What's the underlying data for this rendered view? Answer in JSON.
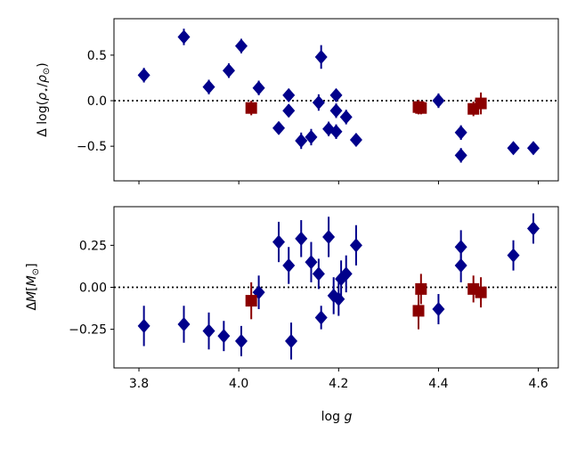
{
  "chart_data": [
    {
      "type": "scatter",
      "panel": "top",
      "xlabel": "",
      "ylabel": "Δ log(ρ⋆/ρ⊙)",
      "xlim": [
        3.75,
        4.64
      ],
      "ylim": [
        -0.88,
        0.9
      ],
      "yticks": [
        0.5,
        0.0,
        -0.5
      ],
      "ytick_labels": [
        "0.5",
        "0.0",
        "−0.5"
      ],
      "reference_line": 0.0,
      "series": [
        {
          "marker": "diamond",
          "color": "#00008b",
          "points": [
            {
              "x": 3.81,
              "y": 0.28,
              "err": 0.08
            },
            {
              "x": 3.89,
              "y": 0.7,
              "err": 0.09
            },
            {
              "x": 3.94,
              "y": 0.15,
              "err": 0.08
            },
            {
              "x": 3.98,
              "y": 0.33,
              "err": 0.08
            },
            {
              "x": 4.005,
              "y": 0.6,
              "err": 0.08
            },
            {
              "x": 4.04,
              "y": 0.14,
              "err": 0.08
            },
            {
              "x": 4.08,
              "y": -0.3,
              "err": 0.06
            },
            {
              "x": 4.1,
              "y": 0.06,
              "err": 0.07
            },
            {
              "x": 4.1,
              "y": -0.11,
              "err": 0.07
            },
            {
              "x": 4.125,
              "y": -0.44,
              "err": 0.09
            },
            {
              "x": 4.145,
              "y": -0.4,
              "err": 0.09
            },
            {
              "x": 4.16,
              "y": -0.02,
              "err": 0.09
            },
            {
              "x": 4.165,
              "y": 0.48,
              "err": 0.13
            },
            {
              "x": 4.18,
              "y": -0.31,
              "err": 0.08
            },
            {
              "x": 4.195,
              "y": 0.06,
              "err": 0.07
            },
            {
              "x": 4.195,
              "y": -0.11,
              "err": 0.08
            },
            {
              "x": 4.195,
              "y": -0.34,
              "err": 0.08
            },
            {
              "x": 4.215,
              "y": -0.18,
              "err": 0.08
            },
            {
              "x": 4.235,
              "y": -0.43,
              "err": 0.07
            },
            {
              "x": 4.4,
              "y": 0.0,
              "err": 0.08
            },
            {
              "x": 4.445,
              "y": -0.35,
              "err": 0.08
            },
            {
              "x": 4.445,
              "y": -0.6,
              "err": 0.08
            },
            {
              "x": 4.55,
              "y": -0.52,
              "err": 0.06
            },
            {
              "x": 4.59,
              "y": -0.52,
              "err": 0.07
            }
          ]
        },
        {
          "marker": "square",
          "color": "#8b0000",
          "points": [
            {
              "x": 4.025,
              "y": -0.08,
              "err": 0.08
            },
            {
              "x": 4.36,
              "y": -0.07,
              "err": 0.08
            },
            {
              "x": 4.365,
              "y": -0.08,
              "err": 0.07
            },
            {
              "x": 4.47,
              "y": -0.09,
              "err": 0.08
            },
            {
              "x": 4.485,
              "y": -0.03,
              "err": 0.12
            }
          ]
        }
      ]
    },
    {
      "type": "scatter",
      "panel": "bottom",
      "xlabel": "log g",
      "ylabel": "ΔM[M⊙]",
      "xlim": [
        3.75,
        4.64
      ],
      "ylim": [
        -0.48,
        0.48
      ],
      "xticks": [
        3.8,
        4.0,
        4.2,
        4.4,
        4.6
      ],
      "xtick_labels": [
        "3.8",
        "4.0",
        "4.2",
        "4.4",
        "4.6"
      ],
      "yticks": [
        0.25,
        0.0,
        -0.25
      ],
      "ytick_labels": [
        "0.25",
        "0.00",
        "−0.25"
      ],
      "reference_line": 0.0,
      "series": [
        {
          "marker": "diamond",
          "color": "#00008b",
          "points": [
            {
              "x": 3.81,
              "y": -0.23,
              "err": 0.12
            },
            {
              "x": 3.89,
              "y": -0.22,
              "err": 0.11
            },
            {
              "x": 3.94,
              "y": -0.26,
              "err": 0.11
            },
            {
              "x": 3.97,
              "y": -0.29,
              "err": 0.09
            },
            {
              "x": 4.005,
              "y": -0.32,
              "err": 0.09
            },
            {
              "x": 4.04,
              "y": -0.03,
              "err": 0.1
            },
            {
              "x": 4.08,
              "y": 0.27,
              "err": 0.12
            },
            {
              "x": 4.1,
              "y": 0.13,
              "err": 0.11
            },
            {
              "x": 4.105,
              "y": -0.32,
              "err": 0.11
            },
            {
              "x": 4.125,
              "y": 0.29,
              "err": 0.11
            },
            {
              "x": 4.145,
              "y": 0.15,
              "err": 0.12
            },
            {
              "x": 4.16,
              "y": 0.08,
              "err": 0.09
            },
            {
              "x": 4.165,
              "y": -0.18,
              "err": 0.07
            },
            {
              "x": 4.18,
              "y": 0.3,
              "err": 0.12
            },
            {
              "x": 4.19,
              "y": -0.05,
              "err": 0.11
            },
            {
              "x": 4.2,
              "y": -0.07,
              "err": 0.1
            },
            {
              "x": 4.205,
              "y": 0.05,
              "err": 0.11
            },
            {
              "x": 4.215,
              "y": 0.08,
              "err": 0.11
            },
            {
              "x": 4.235,
              "y": 0.25,
              "err": 0.12
            },
            {
              "x": 4.4,
              "y": -0.13,
              "err": 0.09
            },
            {
              "x": 4.445,
              "y": 0.24,
              "err": 0.1
            },
            {
              "x": 4.445,
              "y": 0.13,
              "err": 0.1
            },
            {
              "x": 4.55,
              "y": 0.19,
              "err": 0.09
            },
            {
              "x": 4.59,
              "y": 0.35,
              "err": 0.09
            }
          ]
        },
        {
          "marker": "square",
          "color": "#8b0000",
          "points": [
            {
              "x": 4.025,
              "y": -0.08,
              "err": 0.11
            },
            {
              "x": 4.36,
              "y": -0.14,
              "err": 0.11
            },
            {
              "x": 4.365,
              "y": -0.01,
              "err": 0.09
            },
            {
              "x": 4.47,
              "y": -0.01,
              "err": 0.08
            },
            {
              "x": 4.485,
              "y": -0.03,
              "err": 0.09
            }
          ]
        }
      ]
    }
  ]
}
